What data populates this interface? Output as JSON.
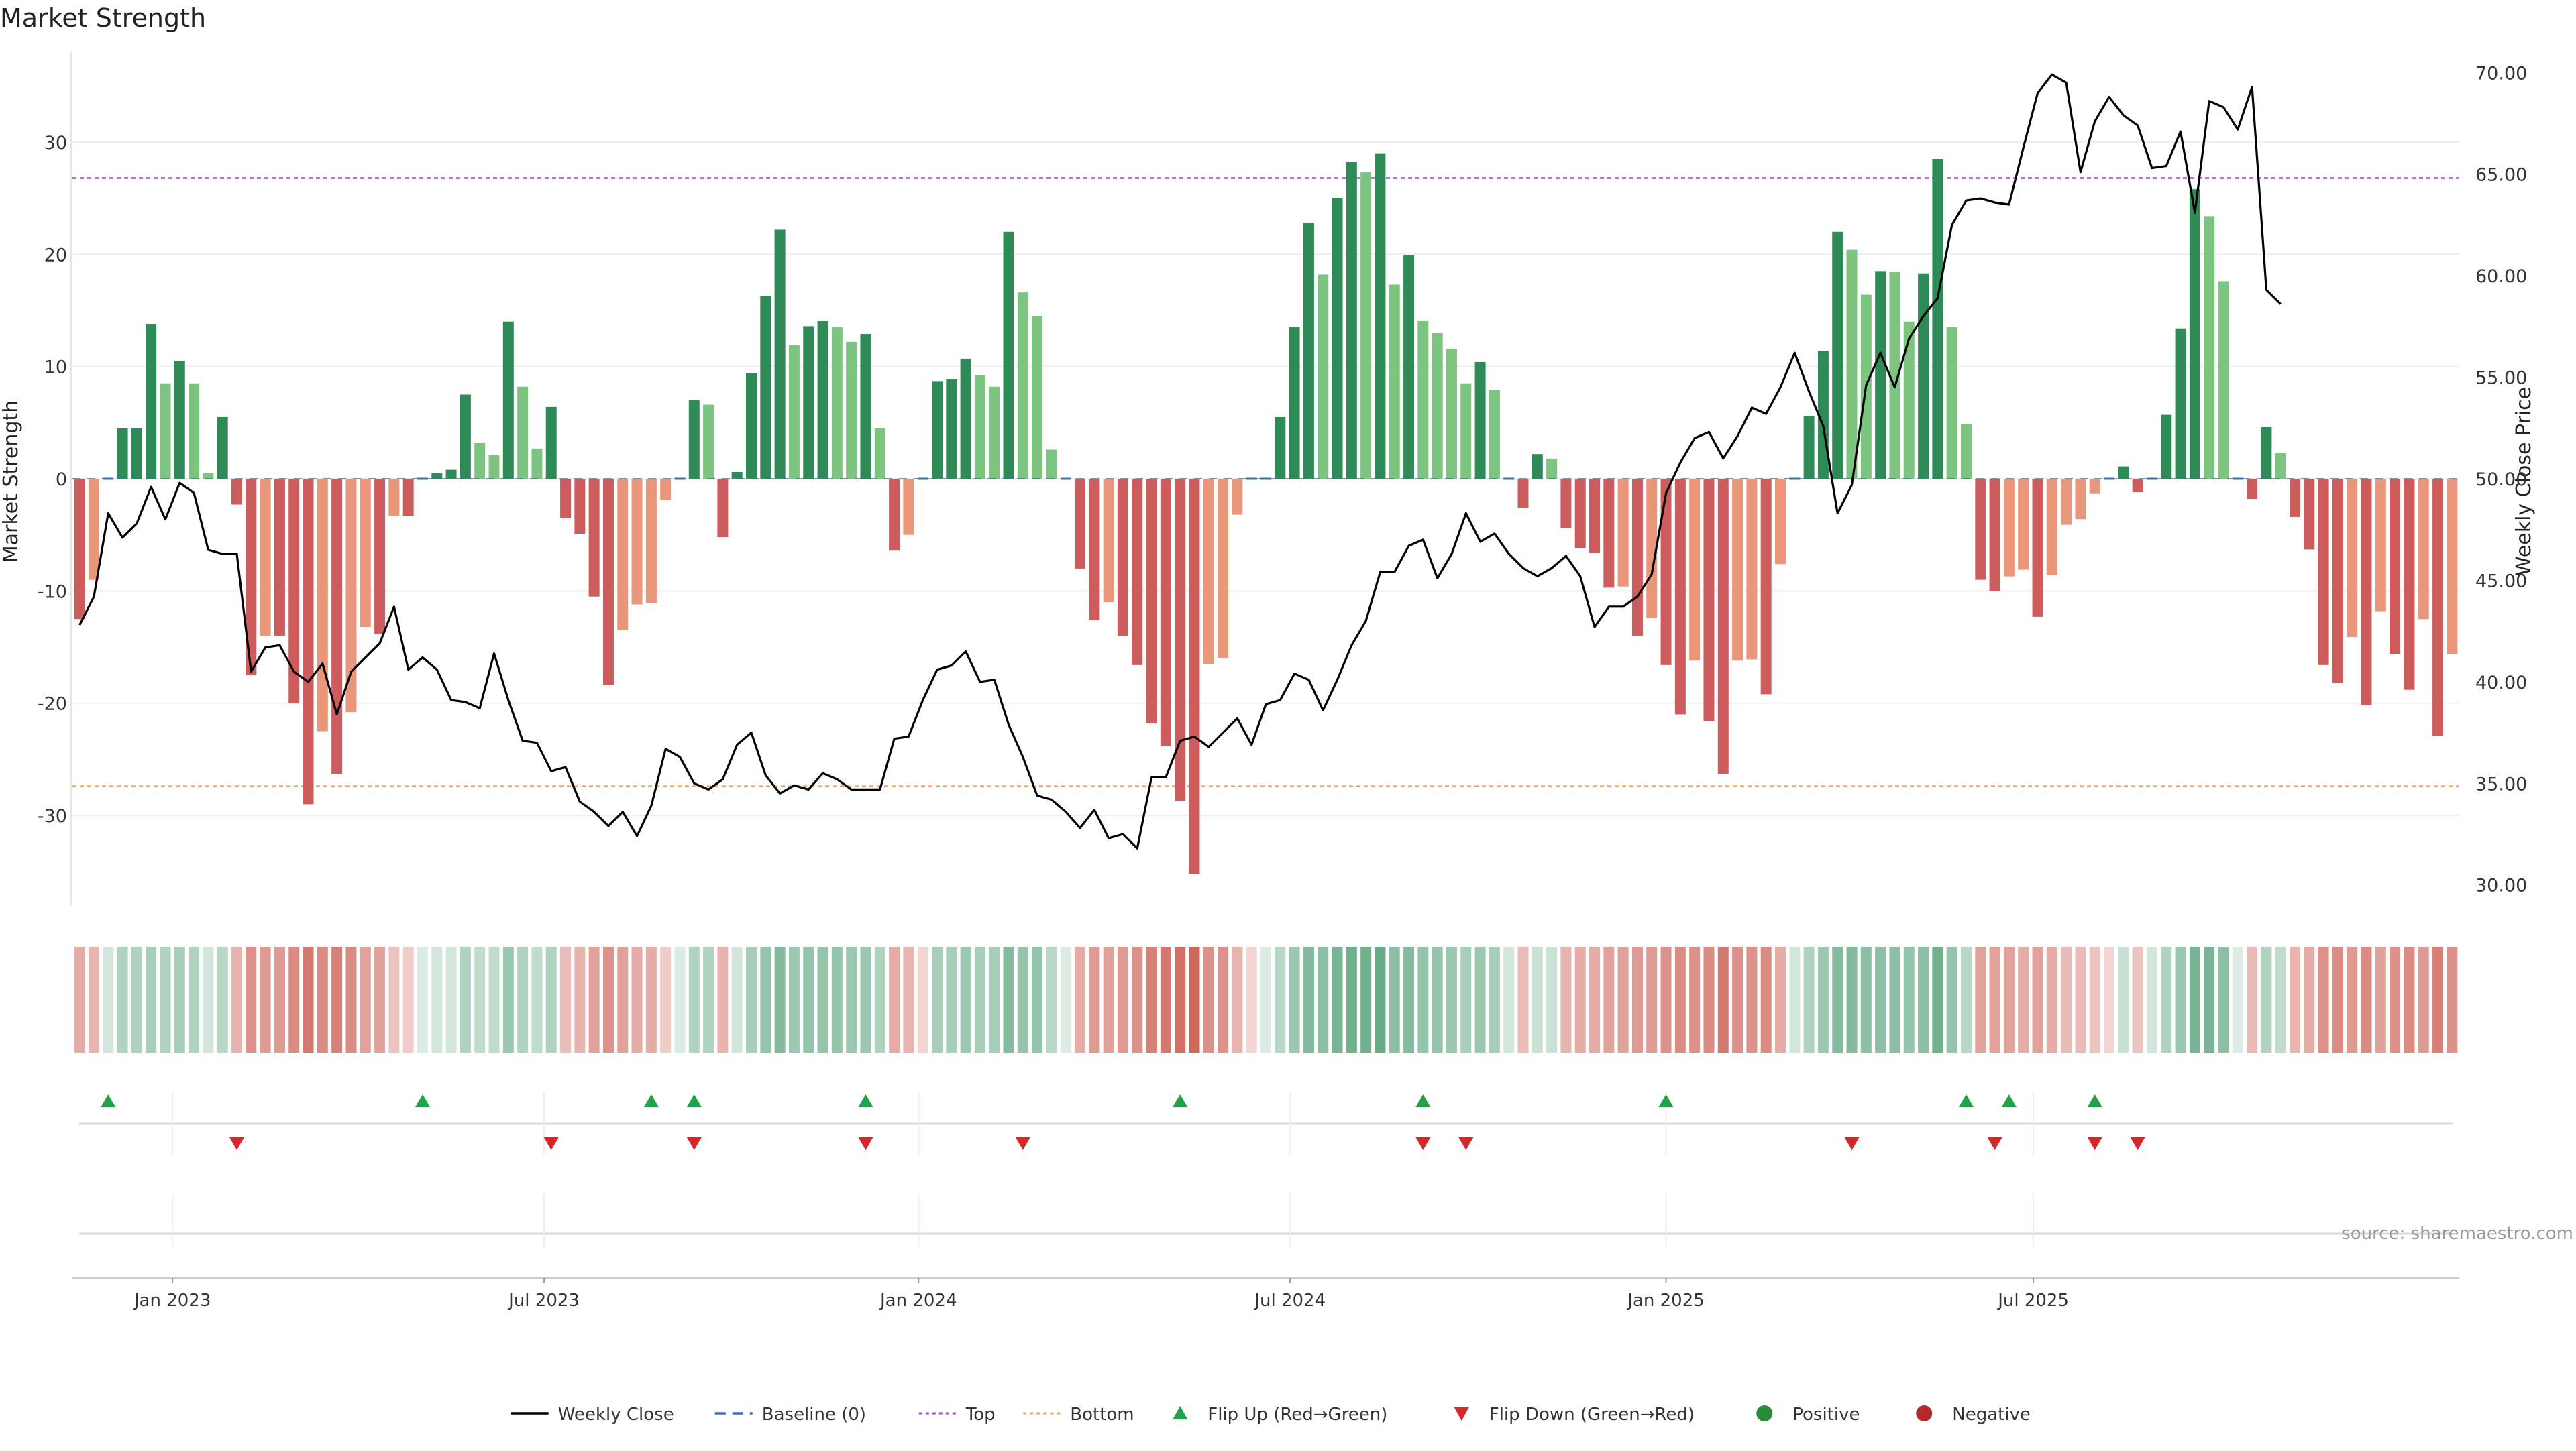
{
  "chart_data": {
    "type": "bar",
    "title": "Market Strength",
    "ylabel": "Market Strength",
    "y2label": "Weekly Close Price",
    "ylim": [
      -38,
      38
    ],
    "y2lim": [
      29,
      71
    ],
    "yticks": [
      -30,
      -20,
      -10,
      0,
      10,
      20,
      30
    ],
    "y2ticks": [
      "30.00",
      "35.00",
      "40.00",
      "45.00",
      "50.00",
      "55.00",
      "60.00",
      "65.00",
      "70.00"
    ],
    "xticks": [
      {
        "label": "Jan 2023",
        "x": 7
      },
      {
        "label": "Jul 2023",
        "x": 33
      },
      {
        "label": "Jan 2024",
        "x": 59.2
      },
      {
        "label": "Jul 2024",
        "x": 85.2
      },
      {
        "label": "Jan 2025",
        "x": 111.5
      },
      {
        "label": "Jul 2025",
        "x": 137.2
      }
    ],
    "top_line": 26.8,
    "bottom_line": -27.4,
    "strength": [
      -12.5,
      -9,
      0,
      4.5,
      4.5,
      13.8,
      8.5,
      10.5,
      8.5,
      0.5,
      5.5,
      -2.3,
      -17.5,
      -14,
      -14,
      -20,
      -29,
      -22.5,
      -26.3,
      -20.8,
      -13.2,
      -13.8,
      -3.3,
      -3.3,
      0,
      0.5,
      0.8,
      7.5,
      3.2,
      2.1,
      14,
      8.2,
      2.7,
      6.4,
      -3.5,
      -4.9,
      -10.5,
      -18.4,
      -13.5,
      -11.2,
      -11.1,
      -1.9,
      0,
      7,
      6.6,
      -5.2,
      0.6,
      9.4,
      16.3,
      22.2,
      11.9,
      13.6,
      14.1,
      13.5,
      12.2,
      12.9,
      4.5,
      -6.4,
      -5,
      0,
      8.7,
      8.9,
      10.7,
      9.2,
      8.2,
      22,
      16.6,
      14.5,
      2.6,
      0,
      -8,
      -12.6,
      -11,
      -14,
      -16.6,
      -21.8,
      -23.8,
      -28.7,
      -35.2,
      -16.5,
      -16,
      -3.2,
      0,
      0,
      5.5,
      13.5,
      22.8,
      18.2,
      25,
      28.2,
      27.3,
      29,
      17.3,
      19.9,
      14.1,
      13,
      11.6,
      8.5,
      10.4,
      7.9,
      0,
      -2.6,
      2.2,
      1.8,
      -4.4,
      -6.2,
      -6.6,
      -9.7,
      -9.6,
      -14,
      -12.4,
      -16.6,
      -21,
      -16.2,
      -21.6,
      -26.3,
      -16.2,
      -16.1,
      -19.2,
      -7.6,
      0,
      5.6,
      11.4,
      22,
      20.4,
      16.4,
      18.5,
      18.4,
      14,
      18.3,
      28.5,
      13.5,
      4.9,
      -9,
      -10,
      -8.7,
      -8.1,
      -12.3,
      -8.6,
      -4.1,
      -3.6,
      -1.3,
      0,
      1.1,
      -1.2,
      0,
      5.7,
      13.4,
      25.8,
      23.4,
      17.6,
      0,
      -1.8,
      4.6,
      2.3,
      -3.4,
      -6.3,
      -16.6,
      -18.2,
      -14.1,
      -20.2,
      -11.8,
      -15.6,
      -18.8,
      -12.5,
      -22.9,
      -15.6
    ],
    "close": [
      42.8,
      44.2,
      48.3,
      47.1,
      47.8,
      49.6,
      48,
      49.8,
      49.3,
      46.5,
      46.3,
      46.3,
      40.5,
      41.7,
      41.8,
      40.5,
      40,
      40.9,
      38.4,
      40.5,
      41.2,
      41.9,
      43.7,
      40.6,
      41.2,
      40.6,
      39.1,
      39,
      38.7,
      41.4,
      39.1,
      37.1,
      37,
      35.6,
      35.8,
      34.1,
      33.6,
      32.9,
      33.6,
      32.4,
      33.9,
      36.7,
      36.3,
      35,
      34.7,
      35.2,
      36.9,
      37.5,
      35.4,
      34.5,
      34.9,
      34.7,
      35.5,
      35.2,
      34.7,
      34.7,
      34.7,
      37.2,
      37.3,
      39.1,
      40.6,
      40.8,
      41.5,
      40,
      40.1,
      37.9,
      36.3,
      34.4,
      34.2,
      33.6,
      32.8,
      33.7,
      32.3,
      32.5,
      31.8,
      35.3,
      35.3,
      37.1,
      37.3,
      36.8,
      37.5,
      38.2,
      36.9,
      38.9,
      39.1,
      40.4,
      40.1,
      38.6,
      40.1,
      41.8,
      43,
      45.4,
      45.4,
      46.7,
      47,
      45.1,
      46.3,
      48.3,
      46.9,
      47.3,
      46.3,
      45.6,
      45.2,
      45.6,
      46.2,
      45.2,
      42.7,
      43.7,
      43.7,
      44.2,
      45.3,
      49.3,
      50.8,
      52,
      52.3,
      51,
      52.1,
      53.5,
      53.2,
      54.5,
      56.2,
      54.3,
      52.6,
      48.3,
      49.7,
      54.6,
      56.2,
      54.5,
      56.9,
      58,
      58.9,
      62.5,
      63.7,
      63.8,
      63.6,
      63.5,
      66.3,
      69,
      69.9,
      69.5,
      65.1,
      67.6,
      68.8,
      67.9,
      67.4,
      65.3,
      65.4,
      67.1,
      63.1,
      68.6,
      68.3,
      67.2,
      69.3,
      59.3,
      58.6
    ],
    "strip": [
      -0.5,
      -0.45,
      0.25,
      0.45,
      0.45,
      0.5,
      0.45,
      0.5,
      0.45,
      0.25,
      0.4,
      -0.45,
      -0.65,
      -0.6,
      -0.6,
      -0.7,
      -0.8,
      -0.7,
      -0.75,
      -0.7,
      -0.55,
      -0.55,
      -0.35,
      -0.3,
      0.2,
      0.25,
      0.25,
      0.45,
      0.35,
      0.35,
      0.55,
      0.45,
      0.35,
      0.45,
      -0.4,
      -0.45,
      -0.55,
      -0.65,
      -0.55,
      -0.5,
      -0.5,
      -0.3,
      0.2,
      0.45,
      0.45,
      -0.45,
      0.25,
      0.5,
      0.6,
      0.7,
      0.55,
      0.6,
      0.6,
      0.6,
      0.55,
      0.55,
      0.45,
      -0.5,
      -0.45,
      -0.25,
      0.5,
      0.5,
      0.55,
      0.5,
      0.5,
      0.7,
      0.6,
      0.6,
      0.4,
      0.2,
      -0.5,
      -0.6,
      -0.55,
      -0.6,
      -0.65,
      -0.75,
      -0.8,
      -0.85,
      -0.9,
      -0.65,
      -0.65,
      -0.45,
      -0.25,
      0.2,
      0.4,
      0.55,
      0.7,
      0.65,
      0.75,
      0.8,
      0.8,
      0.85,
      0.65,
      0.7,
      0.6,
      0.6,
      0.55,
      0.5,
      0.55,
      0.5,
      0.25,
      -0.4,
      0.3,
      0.3,
      -0.45,
      -0.5,
      -0.5,
      -0.55,
      -0.55,
      -0.6,
      -0.6,
      -0.65,
      -0.7,
      -0.65,
      -0.7,
      -0.8,
      -0.65,
      -0.65,
      -0.7,
      -0.5,
      0.25,
      0.45,
      0.55,
      0.7,
      0.7,
      0.65,
      0.65,
      0.65,
      0.6,
      0.65,
      0.8,
      0.6,
      0.4,
      -0.55,
      -0.55,
      -0.55,
      -0.5,
      -0.55,
      -0.5,
      -0.4,
      -0.4,
      -0.35,
      -0.25,
      0.3,
      -0.35,
      0.25,
      0.45,
      0.55,
      0.75,
      0.75,
      0.65,
      0.2,
      -0.4,
      0.45,
      0.35,
      -0.45,
      -0.5,
      -0.65,
      -0.7,
      -0.6,
      -0.7,
      -0.55,
      -0.65,
      -0.7,
      -0.6,
      -0.75,
      -0.65
    ],
    "flip_up": [
      2,
      24,
      40,
      43,
      55,
      77,
      94,
      111,
      132,
      135,
      141
    ],
    "flip_down": [
      11,
      33,
      43,
      55,
      66,
      94,
      97,
      124,
      134,
      141,
      144
    ],
    "legend": [
      {
        "label": "Weekly Close",
        "kind": "line",
        "color": "#000000"
      },
      {
        "label": "Baseline (0)",
        "kind": "dash",
        "color": "#3a6fb0"
      },
      {
        "label": "Top",
        "kind": "dot",
        "color": "#9b4fc0"
      },
      {
        "label": "Bottom",
        "kind": "dot",
        "color": "#f0a060"
      },
      {
        "label": "Flip Up (Red→Green)",
        "kind": "tri-up",
        "color": "#22a04a"
      },
      {
        "label": "Flip Down (Green→Red)",
        "kind": "tri-down",
        "color": "#d62728"
      },
      {
        "label": "Positive",
        "kind": "dot-circle",
        "color": "#2a8a35"
      },
      {
        "label": "Negative",
        "kind": "dot-circle",
        "color": "#b22a2a"
      }
    ],
    "source": "source: sharemaestro.com"
  },
  "colors": {
    "pos_strong": "#2e8b57",
    "pos_light": "#7cc47f",
    "neg_strong": "#cd5c5c",
    "neg_light": "#e9967a",
    "grid": "#eeeeee"
  }
}
